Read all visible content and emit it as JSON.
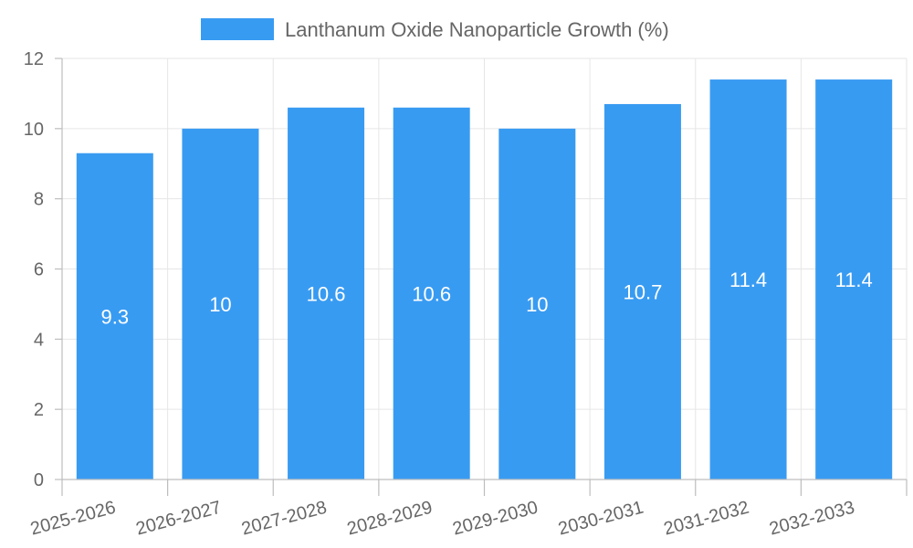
{
  "chart_data": {
    "type": "bar",
    "categories": [
      "2025-2026",
      "2026-2027",
      "2027-2028",
      "2028-2029",
      "2029-2030",
      "2030-2031",
      "2031-2032",
      "2032-2033"
    ],
    "series": [
      {
        "name": "Lanthanum Oxide Nanoparticle Growth (%)",
        "values": [
          9.3,
          10,
          10.6,
          10.6,
          10,
          10.7,
          11.4,
          11.4
        ],
        "color": "#389BF2"
      }
    ],
    "yticks": [
      0,
      2,
      4,
      6,
      8,
      10,
      12
    ],
    "ylim": [
      0,
      12
    ],
    "grid": true,
    "legend_position": "top-center",
    "data_labels": true
  }
}
